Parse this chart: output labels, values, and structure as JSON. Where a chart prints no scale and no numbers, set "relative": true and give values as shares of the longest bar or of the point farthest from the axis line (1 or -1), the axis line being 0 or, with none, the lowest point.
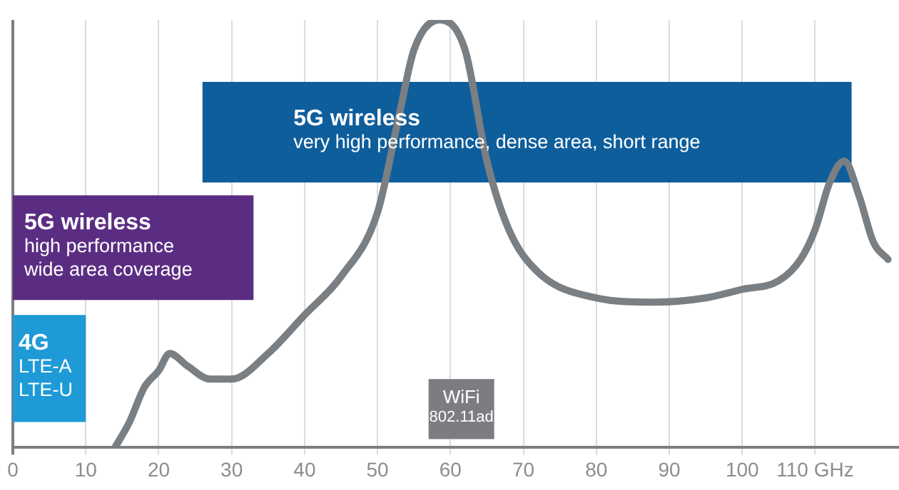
{
  "chart_data": {
    "type": "line",
    "relative": true,
    "x": [
      14,
      16,
      18,
      20,
      21.5,
      24,
      27,
      30,
      35,
      40,
      45,
      50,
      53,
      55,
      58.5,
      62,
      65,
      68,
      72,
      80,
      88,
      95,
      100,
      105,
      108,
      110,
      112,
      114,
      116,
      118,
      120
    ],
    "series": [
      {
        "color": "#7a7f83",
        "values": [
          0,
          0.06,
          0.14,
          0.18,
          0.22,
          0.19,
          0.16,
          0.16,
          0.22,
          0.31,
          0.4,
          0.55,
          0.78,
          0.93,
          1,
          0.93,
          0.67,
          0.51,
          0.41,
          0.35,
          0.34,
          0.35,
          0.37,
          0.39,
          0.44,
          0.51,
          0.62,
          0.67,
          0.59,
          0.48,
          0.44
        ]
      }
    ],
    "xlim": [
      0,
      121.5
    ],
    "xticks": [
      0,
      10,
      20,
      30,
      40,
      50,
      60,
      70,
      80,
      90,
      100,
      {
        "value": 110,
        "label": "110 GHz"
      }
    ],
    "grid": "x",
    "marker": "none",
    "bands": [
      {
        "axis": "x",
        "from": 26,
        "to": 115,
        "label": "5G wireless\nvery high performance, dense area, short range",
        "color": "#0f5e9c"
      },
      {
        "axis": "x",
        "from": 0,
        "to": 33,
        "label": "5G wireless\nhigh performance\nwide area coverage",
        "color": "#5b2d82"
      },
      {
        "axis": "x",
        "from": 0,
        "to": 10,
        "label": "4G\nLTE-A\nLTE-U",
        "color": "#1e9ad6"
      },
      {
        "axis": "x",
        "from": 57,
        "to": 66,
        "label": "WiFi\n802.11ad",
        "color": "#7b7d80"
      }
    ]
  }
}
